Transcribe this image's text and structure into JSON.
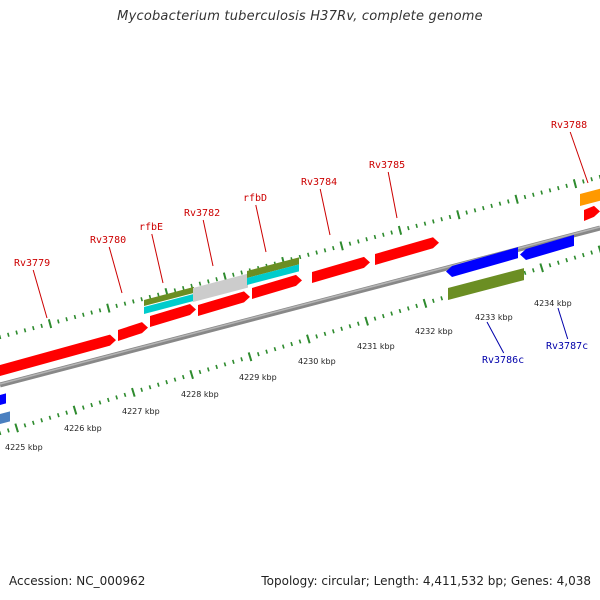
{
  "title": "Mycobacterium tuberculosis H37Rv, complete genome",
  "footer": {
    "accession": "Accession: NC_000962",
    "summary": "Topology: circular; Length: 4,411,532 bp; Genes: 4,038"
  },
  "colors": {
    "forward_gene": "#ff0000",
    "reverse_gene": "#0000ff",
    "label_forward": "#cc0000",
    "label_reverse": "#0000aa",
    "feature_olive": "#6b8e23",
    "feature_cyan": "#00cccc",
    "feature_grey": "#cccccc",
    "feature_orange": "#ff9900",
    "backbone": "#888888",
    "tick": "#2e8b2e"
  },
  "gene_labels_top": [
    "Rv3779",
    "Rv3780",
    "rfbE",
    "Rv3782",
    "rfbD",
    "Rv3784",
    "Rv3785",
    "Rv3788"
  ],
  "gene_labels_bottom": [
    "Rv3786c",
    "Rv3787c"
  ],
  "scale_labels": [
    "4225 kbp",
    "4226 kbp",
    "4227 kbp",
    "4228 kbp",
    "4229 kbp",
    "4230 kbp",
    "4231 kbp",
    "4232 kbp",
    "4233 kbp",
    "4234 kbp"
  ]
}
